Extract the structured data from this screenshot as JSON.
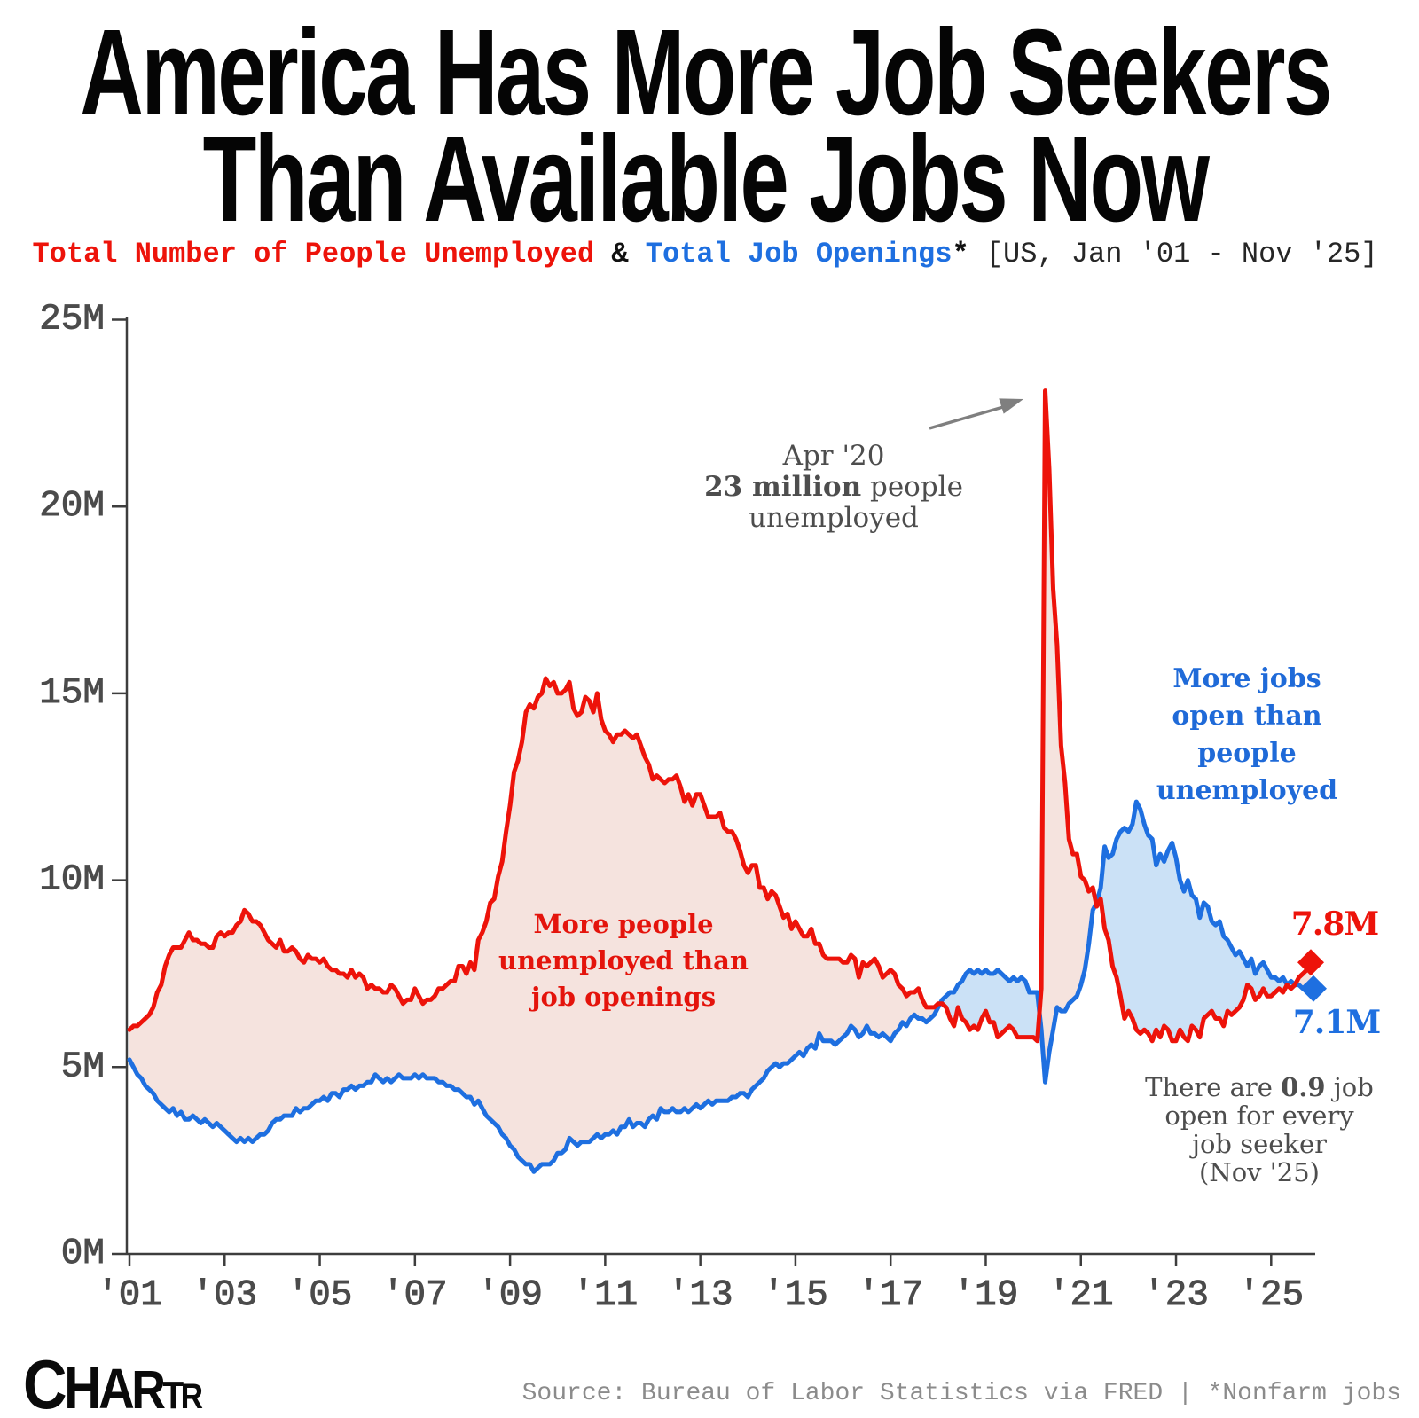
{
  "title": {
    "line1": "America Has More Job Seekers",
    "line2": "Than Available Jobs Now"
  },
  "subtitle": {
    "series1_label": "Total Number of People Unemployed",
    "ampersand": " & ",
    "series2_label": "Total Job Openings",
    "asterisk": "*",
    "range": " [US, Jan '01 - Nov '25]"
  },
  "annotations": {
    "apr20": {
      "line1": "Apr '20",
      "line2_bold": "23 million",
      "line2_rest": " people",
      "line3": "unemployed"
    },
    "more_jobs": {
      "line1": "More jobs",
      "line2": "open than",
      "line3": "people",
      "line4": "unemployed"
    },
    "more_people": {
      "line1": "More people",
      "line2": "unemployed than",
      "line3": "job openings"
    },
    "note": {
      "line1_pre": "There are ",
      "line1_bold": "0.9",
      "line1_post": " job",
      "line2": "open for every",
      "line3": "job seeker",
      "line4": "(Nov '25)"
    }
  },
  "end_labels": {
    "red": "7.8M",
    "blue": "7.1M"
  },
  "footer": {
    "logo": "Chartr",
    "logo_letters": [
      "C",
      "H",
      "A",
      "R",
      "T",
      "R"
    ],
    "source": "Source: Bureau of Labor Statistics via FRED | *Nonfarm jobs"
  },
  "colors": {
    "red": "#ED130A",
    "blue": "#1E6FE0",
    "red_fill": "#F5E3DE",
    "blue_fill": "#CBE1F6",
    "gray_text": "#4D4D4D",
    "axis": "#3D3D3D",
    "tick_label": "#4B4B4B",
    "arrow": "#7F7F7F",
    "source_text": "#8B8B8B"
  },
  "chart_data": {
    "type": "line",
    "title": "America Has More Job Seekers Than Available Jobs Now",
    "x_range": "US, Jan '01 - Nov '25",
    "x_tick_labels": [
      "'01",
      "'03",
      "'05",
      "'07",
      "'09",
      "'11",
      "'13",
      "'15",
      "'17",
      "'19",
      "'21",
      "'23",
      "'25"
    ],
    "y_ticks": [
      0,
      5,
      10,
      15,
      20,
      25
    ],
    "y_tick_labels": [
      "0M",
      "5M",
      "10M",
      "15M",
      "20M",
      "25M"
    ],
    "ylim": [
      0,
      25
    ],
    "x_unit": "months since Jan 2001",
    "series": [
      {
        "name": "Total Number of People Unemployed",
        "color_key": "red",
        "last_label": "7.8M",
        "values": [
          6.0,
          6.1,
          6.1,
          6.2,
          6.3,
          6.4,
          6.6,
          7.0,
          7.2,
          7.7,
          8.0,
          8.2,
          8.2,
          8.2,
          8.4,
          8.6,
          8.4,
          8.4,
          8.3,
          8.3,
          8.2,
          8.2,
          8.5,
          8.6,
          8.5,
          8.6,
          8.6,
          8.8,
          8.9,
          9.2,
          9.1,
          8.9,
          8.9,
          8.8,
          8.6,
          8.4,
          8.3,
          8.2,
          8.4,
          8.1,
          8.1,
          8.2,
          8.1,
          7.9,
          7.8,
          8.0,
          7.9,
          7.9,
          7.8,
          7.9,
          7.7,
          7.6,
          7.6,
          7.5,
          7.5,
          7.4,
          7.6,
          7.4,
          7.5,
          7.4,
          7.1,
          7.2,
          7.1,
          7.1,
          7.0,
          7.0,
          7.2,
          7.1,
          6.9,
          6.7,
          6.8,
          6.8,
          7.1,
          6.9,
          6.7,
          6.8,
          6.8,
          6.9,
          7.1,
          7.1,
          7.2,
          7.3,
          7.3,
          7.7,
          7.7,
          7.5,
          7.8,
          7.6,
          8.4,
          8.6,
          8.9,
          9.4,
          9.5,
          10.1,
          10.5,
          11.3,
          12.0,
          12.9,
          13.2,
          13.7,
          14.5,
          14.7,
          14.6,
          14.9,
          15.0,
          15.4,
          15.2,
          15.3,
          15.0,
          15.0,
          15.1,
          15.3,
          14.6,
          14.4,
          14.5,
          14.9,
          14.8,
          14.5,
          15.0,
          14.3,
          14.0,
          13.9,
          13.7,
          13.9,
          13.9,
          14.0,
          13.9,
          13.8,
          13.9,
          13.6,
          13.3,
          13.1,
          12.7,
          12.8,
          12.7,
          12.6,
          12.7,
          12.7,
          12.8,
          12.5,
          12.1,
          12.3,
          12.0,
          12.3,
          12.3,
          12.0,
          11.7,
          11.7,
          11.7,
          11.8,
          11.4,
          11.3,
          11.3,
          11.1,
          10.8,
          10.4,
          10.2,
          10.4,
          10.4,
          9.8,
          9.8,
          9.5,
          9.7,
          9.6,
          9.3,
          9.0,
          9.1,
          8.7,
          8.9,
          8.7,
          8.5,
          8.5,
          8.7,
          8.3,
          8.3,
          8.0,
          7.9,
          7.9,
          7.9,
          7.9,
          7.8,
          7.8,
          8.0,
          7.9,
          7.4,
          7.8,
          7.7,
          7.8,
          7.9,
          7.7,
          7.4,
          7.5,
          7.6,
          7.5,
          7.2,
          7.1,
          6.9,
          7.0,
          7.0,
          7.1,
          6.8,
          6.6,
          6.6,
          6.6,
          6.7,
          6.7,
          6.6,
          6.3,
          6.1,
          6.6,
          6.3,
          6.2,
          6.0,
          6.1,
          6.0,
          6.3,
          6.5,
          6.2,
          6.2,
          5.8,
          5.9,
          6.0,
          6.1,
          6.0,
          5.8,
          5.8,
          5.8,
          5.8,
          5.8,
          5.7,
          7.1,
          23.1,
          21.0,
          17.8,
          16.3,
          13.6,
          12.6,
          11.1,
          10.7,
          10.7,
          10.1,
          10.0,
          9.7,
          9.8,
          9.3,
          9.5,
          8.7,
          8.4,
          7.7,
          7.4,
          6.9,
          6.3,
          6.5,
          6.3,
          6.0,
          5.9,
          6.0,
          5.9,
          5.7,
          6.0,
          5.8,
          6.1,
          6.0,
          5.7,
          5.7,
          6.0,
          5.8,
          5.7,
          6.1,
          6.0,
          5.8,
          6.3,
          6.4,
          6.5,
          6.3,
          6.3,
          6.1,
          6.5,
          6.4,
          6.5,
          6.6,
          6.8,
          7.2,
          7.1,
          6.8,
          6.9,
          7.1,
          6.9,
          6.9,
          7.0,
          7.1,
          7.0,
          7.2,
          7.1,
          7.2,
          7.4,
          7.5,
          7.6,
          7.8
        ]
      },
      {
        "name": "Total Job Openings",
        "color_key": "blue",
        "last_label": "7.1M",
        "values": [
          5.2,
          5.0,
          4.8,
          4.7,
          4.5,
          4.4,
          4.3,
          4.1,
          4.0,
          3.9,
          3.8,
          3.9,
          3.7,
          3.8,
          3.6,
          3.6,
          3.7,
          3.6,
          3.5,
          3.6,
          3.5,
          3.4,
          3.5,
          3.4,
          3.3,
          3.2,
          3.1,
          3.0,
          3.1,
          3.0,
          3.1,
          3.0,
          3.1,
          3.2,
          3.2,
          3.3,
          3.5,
          3.6,
          3.6,
          3.7,
          3.7,
          3.7,
          3.9,
          3.8,
          3.9,
          3.9,
          4.0,
          4.1,
          4.1,
          4.2,
          4.1,
          4.3,
          4.3,
          4.2,
          4.4,
          4.4,
          4.5,
          4.4,
          4.5,
          4.5,
          4.6,
          4.6,
          4.8,
          4.7,
          4.6,
          4.7,
          4.6,
          4.7,
          4.8,
          4.7,
          4.7,
          4.7,
          4.8,
          4.7,
          4.8,
          4.7,
          4.7,
          4.7,
          4.6,
          4.6,
          4.5,
          4.5,
          4.4,
          4.4,
          4.3,
          4.2,
          4.2,
          4.0,
          4.1,
          3.9,
          3.7,
          3.6,
          3.5,
          3.4,
          3.2,
          3.1,
          2.9,
          2.8,
          2.6,
          2.5,
          2.4,
          2.4,
          2.2,
          2.3,
          2.4,
          2.4,
          2.4,
          2.5,
          2.7,
          2.7,
          2.8,
          3.1,
          3.0,
          2.9,
          3.0,
          3.0,
          3.0,
          3.1,
          3.2,
          3.1,
          3.2,
          3.2,
          3.3,
          3.2,
          3.4,
          3.4,
          3.6,
          3.4,
          3.5,
          3.5,
          3.4,
          3.6,
          3.7,
          3.6,
          3.9,
          3.8,
          3.8,
          3.9,
          3.8,
          3.8,
          3.9,
          3.8,
          3.9,
          4.0,
          3.9,
          4.0,
          4.1,
          4.0,
          4.1,
          4.1,
          4.1,
          4.1,
          4.2,
          4.2,
          4.3,
          4.3,
          4.2,
          4.4,
          4.5,
          4.6,
          4.7,
          4.9,
          5.0,
          5.1,
          5.0,
          5.1,
          5.1,
          5.2,
          5.3,
          5.4,
          5.3,
          5.5,
          5.6,
          5.5,
          5.9,
          5.7,
          5.7,
          5.7,
          5.6,
          5.7,
          5.8,
          5.9,
          6.1,
          6.0,
          5.8,
          5.9,
          6.1,
          5.9,
          5.9,
          5.8,
          5.9,
          5.8,
          5.7,
          5.9,
          6.0,
          6.2,
          6.1,
          6.3,
          6.4,
          6.3,
          6.3,
          6.2,
          6.3,
          6.4,
          6.6,
          6.8,
          6.9,
          7.0,
          7.0,
          7.2,
          7.3,
          7.5,
          7.6,
          7.5,
          7.6,
          7.5,
          7.6,
          7.5,
          7.5,
          7.6,
          7.5,
          7.4,
          7.3,
          7.4,
          7.3,
          7.4,
          7.3,
          7.0,
          7.0,
          7.0,
          6.0,
          4.6,
          5.4,
          6.0,
          6.6,
          6.5,
          6.5,
          6.7,
          6.8,
          6.9,
          7.2,
          7.6,
          8.3,
          9.2,
          9.4,
          9.8,
          10.9,
          10.6,
          10.7,
          11.1,
          11.3,
          11.4,
          11.3,
          11.5,
          12.1,
          11.9,
          11.5,
          11.2,
          11.1,
          10.4,
          10.7,
          10.5,
          10.8,
          11.0,
          10.6,
          10.0,
          9.7,
          10.0,
          9.6,
          9.5,
          9.0,
          9.4,
          9.3,
          8.9,
          8.8,
          8.9,
          8.5,
          8.4,
          8.2,
          8.0,
          8.1,
          7.9,
          7.7,
          7.9,
          7.5,
          7.7,
          7.8,
          7.6,
          7.4,
          7.4,
          7.3,
          7.4,
          7.2,
          7.3,
          7.2,
          7.2,
          7.1,
          7.2,
          7.1
        ]
      }
    ]
  }
}
